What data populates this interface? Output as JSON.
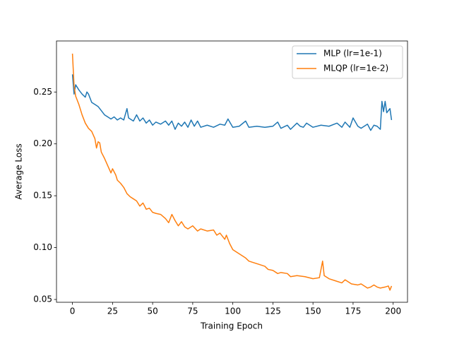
{
  "chart_data": {
    "type": "line",
    "xlabel": "Training Epoch",
    "ylabel": "Average Loss",
    "xlim": [
      -9.95,
      208.95
    ],
    "ylim": [
      0.0473,
      0.2992
    ],
    "xticks": [
      0,
      25,
      50,
      75,
      100,
      125,
      150,
      175,
      200
    ],
    "yticks": [
      0.05,
      {
        "value": 0.1,
        "label": "0.10"
      },
      0.15,
      {
        "value": 0.2,
        "label": "0.20"
      },
      0.25
    ],
    "legend": "upper right",
    "series": [
      {
        "name": "MLP (lr=1e-1)",
        "color": "#1f77b4",
        "x": [
          0,
          1,
          2,
          4,
          6,
          8,
          9,
          10,
          12,
          14,
          16,
          18,
          20,
          22,
          24,
          26,
          28,
          30,
          32,
          34,
          35,
          38,
          40,
          42,
          44,
          46,
          48,
          50,
          52,
          55,
          58,
          60,
          62,
          64,
          66,
          68,
          70,
          72,
          74,
          76,
          78,
          80,
          84,
          88,
          92,
          95,
          97,
          100,
          104,
          108,
          110,
          115,
          120,
          125,
          128,
          130,
          134,
          136,
          140,
          142,
          144,
          146,
          150,
          155,
          160,
          165,
          168,
          170,
          173,
          175,
          178,
          180,
          184,
          186,
          188,
          190,
          192,
          193,
          194,
          195,
          196,
          198,
          199
        ],
        "values": [
          0.267,
          0.248,
          0.257,
          0.252,
          0.248,
          0.245,
          0.25,
          0.248,
          0.24,
          0.238,
          0.236,
          0.232,
          0.228,
          0.226,
          0.224,
          0.226,
          0.223,
          0.225,
          0.223,
          0.234,
          0.225,
          0.222,
          0.228,
          0.222,
          0.225,
          0.22,
          0.223,
          0.218,
          0.221,
          0.219,
          0.222,
          0.218,
          0.222,
          0.214,
          0.22,
          0.217,
          0.221,
          0.216,
          0.223,
          0.217,
          0.222,
          0.216,
          0.218,
          0.216,
          0.219,
          0.218,
          0.224,
          0.216,
          0.217,
          0.222,
          0.216,
          0.217,
          0.216,
          0.217,
          0.221,
          0.215,
          0.218,
          0.214,
          0.22,
          0.217,
          0.216,
          0.22,
          0.216,
          0.218,
          0.217,
          0.22,
          0.216,
          0.221,
          0.216,
          0.225,
          0.217,
          0.215,
          0.219,
          0.213,
          0.218,
          0.217,
          0.214,
          0.241,
          0.231,
          0.241,
          0.23,
          0.234,
          0.223
        ]
      },
      {
        "name": "MLQP (lr=1e-2)",
        "color": "#ff7f0e",
        "x": [
          0,
          1,
          2,
          4,
          6,
          8,
          10,
          12,
          14,
          15,
          16,
          17,
          18,
          20,
          22,
          24,
          25,
          27,
          28,
          30,
          32,
          34,
          36,
          38,
          40,
          42,
          44,
          46,
          48,
          50,
          52,
          55,
          58,
          60,
          62,
          64,
          66,
          68,
          70,
          72,
          75,
          78,
          80,
          84,
          88,
          90,
          92,
          95,
          96,
          98,
          100,
          104,
          108,
          110,
          112,
          116,
          120,
          122,
          125,
          128,
          130,
          134,
          136,
          140,
          145,
          150,
          154,
          156,
          157,
          160,
          164,
          168,
          170,
          174,
          178,
          180,
          184,
          186,
          188,
          190,
          192,
          195,
          197,
          198,
          199
        ],
        "values": [
          0.287,
          0.256,
          0.246,
          0.238,
          0.228,
          0.22,
          0.215,
          0.212,
          0.205,
          0.196,
          0.202,
          0.201,
          0.192,
          0.186,
          0.179,
          0.172,
          0.176,
          0.17,
          0.165,
          0.162,
          0.158,
          0.152,
          0.149,
          0.147,
          0.145,
          0.14,
          0.143,
          0.137,
          0.138,
          0.134,
          0.133,
          0.132,
          0.128,
          0.124,
          0.132,
          0.126,
          0.121,
          0.125,
          0.12,
          0.118,
          0.121,
          0.116,
          0.118,
          0.116,
          0.117,
          0.112,
          0.114,
          0.108,
          0.112,
          0.104,
          0.098,
          0.094,
          0.09,
          0.087,
          0.086,
          0.084,
          0.082,
          0.079,
          0.078,
          0.075,
          0.076,
          0.075,
          0.072,
          0.073,
          0.072,
          0.07,
          0.071,
          0.087,
          0.073,
          0.07,
          0.068,
          0.066,
          0.069,
          0.065,
          0.064,
          0.065,
          0.061,
          0.062,
          0.064,
          0.062,
          0.061,
          0.062,
          0.063,
          0.059,
          0.063
        ]
      }
    ]
  }
}
